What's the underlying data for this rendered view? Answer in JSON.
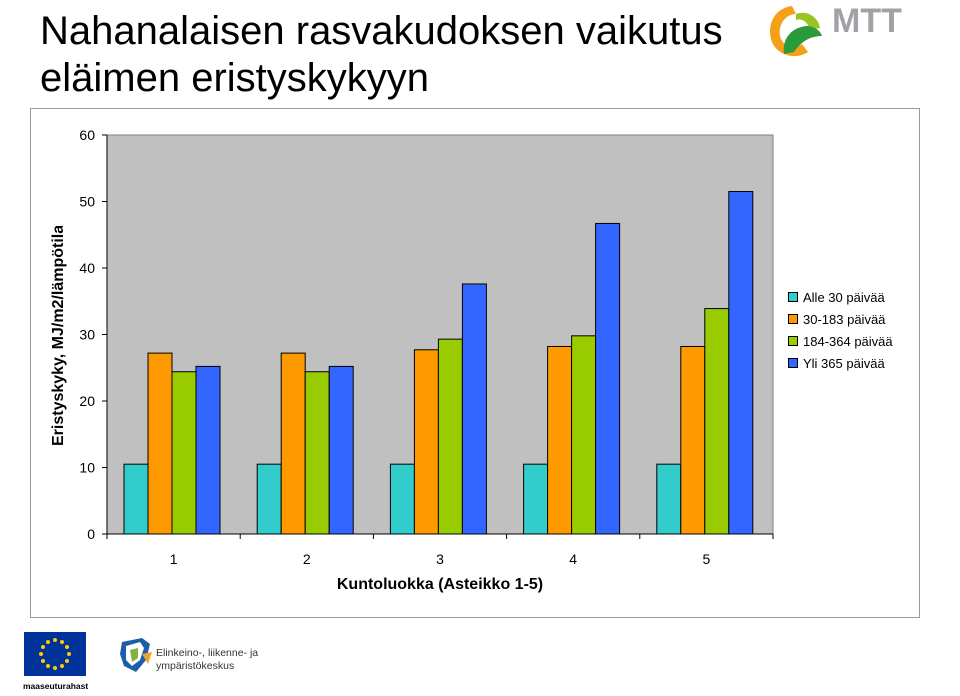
{
  "title": "Nahanalaisen rasvakudoksen vaikutus eläimen eristyskykyyn",
  "logos": {
    "mtt": {
      "text": "MTT",
      "icon": "mtt-leaf-logo-icon",
      "colors": [
        "#f6a01a",
        "#9cc420",
        "#2a9a3a",
        "#9fa3a7"
      ]
    },
    "eu": {
      "caption": "maaseuturahasto",
      "icon": "eu-flag-icon",
      "colors": [
        "#003399",
        "#ffcc00"
      ]
    },
    "ely": {
      "line1": "Elinkeino-, liikenne- ja",
      "line2": "ympäristökeskus",
      "icon": "ely-centre-logo-icon"
    }
  },
  "chart_data": {
    "type": "bar",
    "title": "Nahanalaisen rasvakudoksen vaikutus eläimen eristyskykyyn",
    "xlabel": "Kuntoluokka (Asteikko 1-5)",
    "ylabel": "Eristyskyky, MJ/m2/lämpötila",
    "categories": [
      "1",
      "2",
      "3",
      "4",
      "5"
    ],
    "ylim": [
      0,
      60
    ],
    "yticks": [
      "0",
      "10",
      "20",
      "30",
      "40",
      "50",
      "60"
    ],
    "grid": false,
    "legend_position": "right",
    "plot_background": "#c0c0c0",
    "series": [
      {
        "name": "Alle 30 päivää",
        "color": "#33cccc",
        "values": [
          10.5,
          10.5,
          10.5,
          10.5,
          10.5
        ]
      },
      {
        "name": "30-183 päivää",
        "color": "#ff9900",
        "values": [
          27.2,
          27.2,
          27.7,
          28.2,
          28.2
        ]
      },
      {
        "name": "184-364 päivää",
        "color": "#99cc00",
        "values": [
          24.4,
          24.4,
          29.3,
          29.8,
          33.9
        ]
      },
      {
        "name": "Yli 365 päivää",
        "color": "#3366ff",
        "values": [
          25.2,
          25.2,
          37.6,
          46.7,
          51.5
        ]
      }
    ]
  }
}
